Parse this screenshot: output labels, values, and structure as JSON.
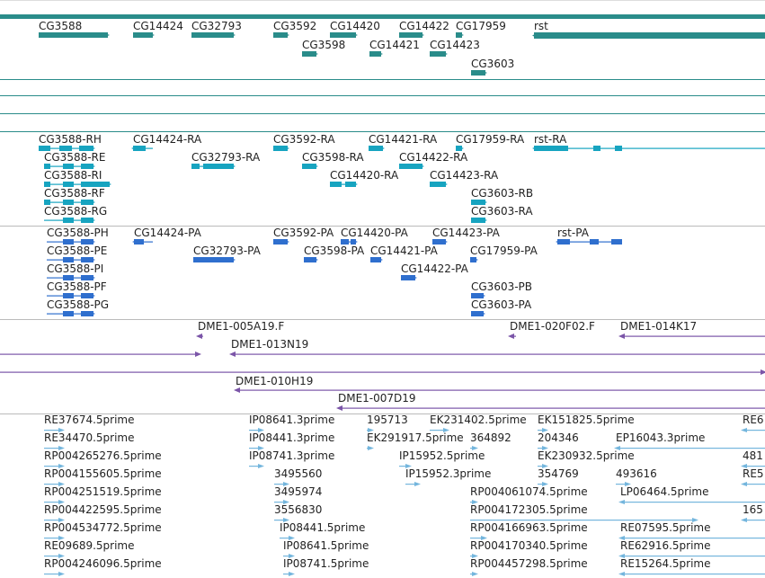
{
  "colors": {
    "gene": "#2a8c8a",
    "transcript": "#17a4c0",
    "protein": "#2f6fce",
    "clone": "#7b55a8",
    "est": "#74b6dd",
    "separator_track": "#2a8c8a",
    "separator_gray": "#bbbbbb"
  },
  "icons": {
    "forward_arrow": "arrow-right-icon",
    "reverse_arrow": "arrow-left-icon"
  },
  "gene_labels": [
    "CG3588",
    "CG14424",
    "CG32793",
    "CG3592",
    "CG14420",
    "CG14422",
    "CG17959",
    "rst",
    "CG3598",
    "CG14421",
    "CG14423",
    "CG3603"
  ],
  "transcript_labels": [
    "CG3588-RH",
    "CG14424-RA",
    "CG3592-RA",
    "CG14421-RA",
    "CG17959-RA",
    "rst-RA",
    "CG3588-RE",
    "CG32793-RA",
    "CG3598-RA",
    "CG14422-RA",
    "CG3588-RI",
    "CG14420-RA",
    "CG14423-RA",
    "CG3588-RF",
    "CG3603-RB",
    "CG3588-RG",
    "CG3603-RA"
  ],
  "protein_labels": [
    "CG3588-PH",
    "CG14424-PA",
    "CG3592-PA",
    "CG14420-PA",
    "CG14423-PA",
    "rst-PA",
    "CG3588-PE",
    "CG32793-PA",
    "CG3598-PA",
    "CG14421-PA",
    "CG17959-PA",
    "CG3588-PI",
    "CG14422-PA",
    "CG3588-PF",
    "CG3603-PB",
    "CG3588-PG",
    "CG3603-PA"
  ],
  "clone_labels": [
    "DME1-005A19.F",
    "DME1-020F02.F",
    "DME1-014K17",
    "DME1-013N19",
    "DME1-010H19",
    "DME1-007D19"
  ],
  "est_labels": [
    "RE37674.5prime",
    "IP08641.3prime",
    "195713",
    "EK231402.5prime",
    "EK151825.5prime",
    "RE6",
    "RE34470.5prime",
    "IP08441.3prime",
    "EK291917.5prime",
    "364892",
    "204346",
    "EP16043.3prime",
    "RP004265276.5prime",
    "IP08741.3prime",
    "IP15952.5prime",
    "EK230932.5prime",
    "481",
    "RP004155605.5prime",
    "3495560",
    "IP15952.3prime",
    "354769",
    "493616",
    "RE5",
    "RP004251519.5prime",
    "3495974",
    "RP004061074.5prime",
    "LP06464.5prime",
    "RP004422595.5prime",
    "3556830",
    "RP004172305.5prime",
    "165",
    "RP004534772.5prime",
    "IP08441.5prime",
    "RP004166963.5prime",
    "RE07595.5prime",
    "RE09689.5prime",
    "IP08641.5prime",
    "RP004170340.5prime",
    "RE62916.5prime",
    "RP004246096.5prime",
    "IP08741.5prime",
    "RP004457298.5prime",
    "RE15264.5prime"
  ]
}
